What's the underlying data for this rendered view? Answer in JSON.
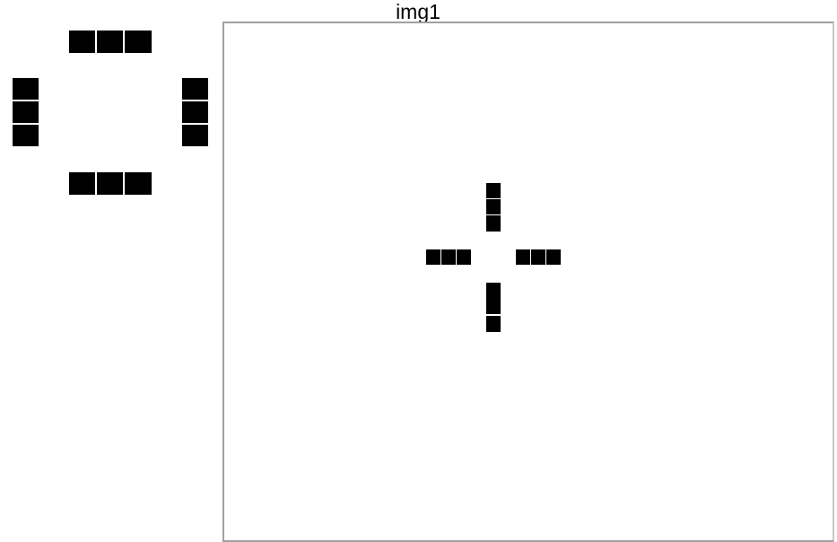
{
  "window": {
    "title": "img1"
  },
  "colors": {
    "tile": "#000000",
    "background": "#ffffff",
    "frame_border": "#a0a0a0"
  }
}
